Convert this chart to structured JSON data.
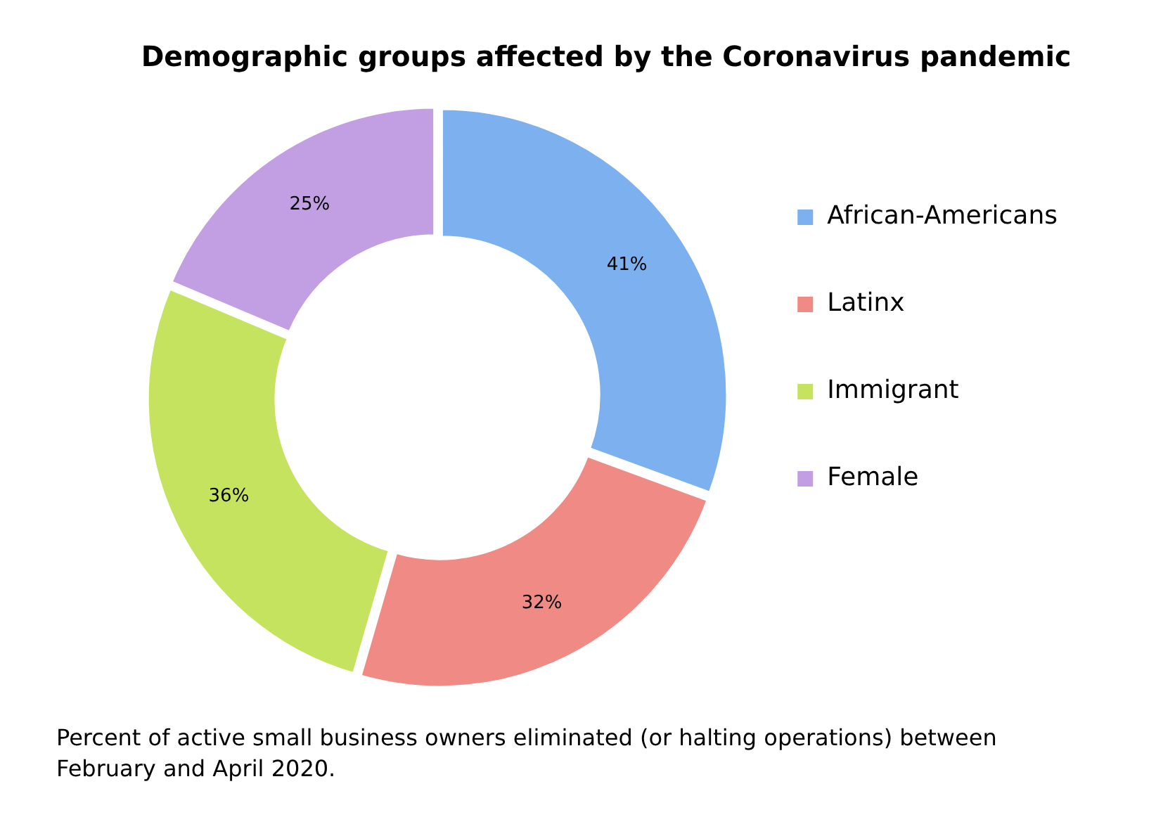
{
  "chart_data": {
    "type": "donut",
    "title": "Demographic groups affected by the Coronavirus pandemic",
    "categories": [
      "African-Americans",
      "Latinx",
      "Immigrant",
      "Female"
    ],
    "values": [
      41,
      32,
      36,
      25
    ],
    "colors": [
      "#7cb0ee",
      "#f08a84",
      "#c5e35e",
      "#c29ee2"
    ],
    "value_labels": [
      "41%",
      "32%",
      "36%",
      "25%"
    ],
    "legend": "right",
    "annotations": [
      "Percent of active small business owners eliminated (or halting operations) between February and April 2020."
    ]
  }
}
